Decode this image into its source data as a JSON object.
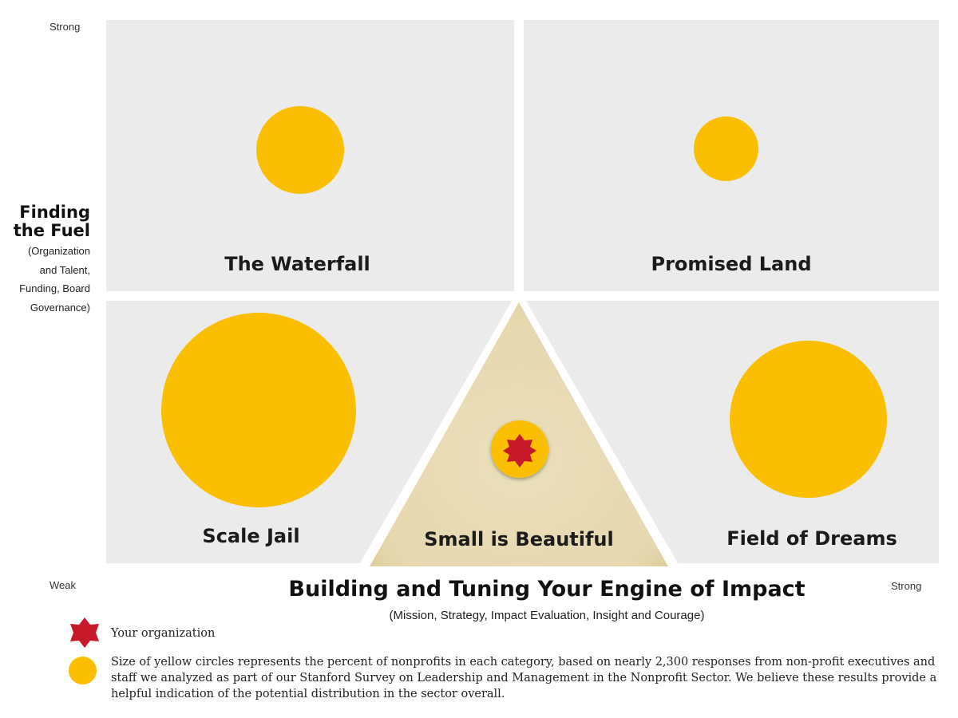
{
  "y_axis": {
    "title_line1": "Finding",
    "title_line2": "the Fuel",
    "subtitle_lines": [
      "(Organization",
      "and Talent,",
      "Funding, Board",
      "Governance)"
    ],
    "strong_label": "Strong",
    "weak_label": "Weak"
  },
  "x_axis": {
    "title": "Building and Tuning Your Engine of Impact",
    "subtitle": "(Mission, Strategy, Impact Evaluation, Insight and Courage)",
    "strong_label": "Strong"
  },
  "quadrants": {
    "top_left": {
      "label": "The Waterfall"
    },
    "top_right": {
      "label": "Promised Land"
    },
    "bottom_left": {
      "label": "Scale Jail"
    },
    "bottom_right": {
      "label": "Field of Dreams"
    },
    "center": {
      "label": "Small is Beautiful"
    }
  },
  "legend": {
    "organization_label": "Your organization",
    "circle_description": "Size of yellow circles represents the percent of nonprofits in each category, based on nearly 2,300 responses from non-profit executives and staff we analyzed as part of our Stanford Survey on Leadership and Management in the Nonprofit Sector. We believe these results provide a helpful indication of the potential distribution in the sector overall."
  },
  "colors": {
    "quadrant_bg": "#ebebeb",
    "circle": "#fbbf00",
    "triangle": "#e6d9b3",
    "star": "#c8192b"
  },
  "icons": {
    "organization_marker": "red-star-icon",
    "circle_marker": "yellow-circle-icon"
  }
}
